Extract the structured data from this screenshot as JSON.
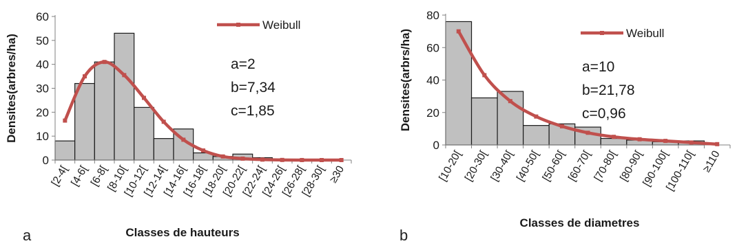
{
  "chart_data": [
    {
      "type": "bar",
      "panel_label": "a",
      "xlabel": "Classes de hauteurs",
      "ylabel": "Densites(arbres/ha)",
      "ylim": [
        0,
        60
      ],
      "yticks": [
        0,
        10,
        20,
        30,
        40,
        50,
        60
      ],
      "grid": false,
      "categories": [
        "[2-4[",
        "[4-6[",
        "[6-8[",
        "[8-10[",
        "[10-12[",
        "[12-14[",
        "[14-16[",
        "[16-18[",
        "[18-20[",
        "[20-22[",
        "[22-24[",
        "[24-26[",
        "[26-28[",
        "[28-30[",
        "≥30"
      ],
      "values": [
        8,
        32,
        41,
        53,
        22,
        9,
        13,
        3,
        1.5,
        2.5,
        1,
        0.3,
        0.2,
        0.2,
        0
      ],
      "series": [
        {
          "name": "Weibull",
          "type": "line",
          "color": "#c0504d",
          "values": [
            16.5,
            35,
            41,
            35.5,
            26,
            16,
            8.5,
            4,
            1.5,
            0.6,
            0.2,
            0.05,
            0.01,
            0,
            0
          ]
        }
      ],
      "legend": {
        "label": "Weibull",
        "placement": "top-right"
      },
      "annotations": [
        "a=2",
        "b=7,34",
        "c=1,85"
      ],
      "bar_color": "#c0c0c0",
      "bar_edge_color": "#1a1a1a"
    },
    {
      "type": "bar",
      "panel_label": "b",
      "xlabel": "Classes de diametres",
      "ylabel": "Densites(arbrs/ha)",
      "ylim": [
        0,
        80
      ],
      "yticks": [
        0,
        20,
        40,
        60,
        80
      ],
      "grid": false,
      "categories": [
        "[10-20[",
        "[20-30[",
        "[30-40[",
        "[40-50[",
        "[50-60[",
        "[60-70[",
        "[70-80[",
        "[80-90[",
        "[90-100[",
        "[100-110[",
        "≥110"
      ],
      "values": [
        76,
        29,
        33,
        12,
        13,
        11,
        4,
        3,
        2,
        2.5,
        0
      ],
      "series": [
        {
          "name": "Weibull",
          "type": "line",
          "color": "#c0504d",
          "values": [
            70,
            43,
            27,
            17.5,
            11.5,
            7.5,
            5,
            3.5,
            2.5,
            1.5,
            0.5
          ]
        }
      ],
      "legend": {
        "label": "Weibull",
        "placement": "top-right"
      },
      "annotations": [
        "a=10",
        "b=21,78",
        "c=0,96"
      ],
      "bar_color": "#c0c0c0",
      "bar_edge_color": "#1a1a1a"
    }
  ]
}
